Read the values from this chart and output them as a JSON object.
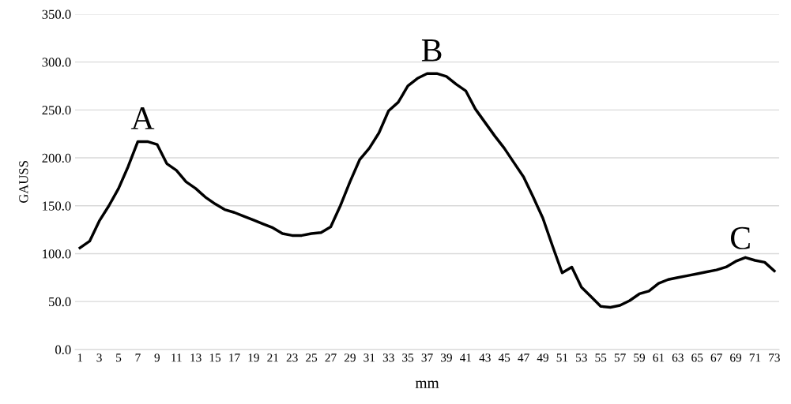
{
  "chart_data": {
    "type": "line",
    "xlabel": "mm",
    "ylabel": "GAUSS",
    "categories": [
      "1",
      null,
      "3",
      null,
      "5",
      null,
      "7",
      null,
      "9",
      null,
      "11",
      null,
      "13",
      null,
      "15",
      null,
      "17",
      null,
      "19",
      null,
      "21",
      null,
      "23",
      null,
      "25",
      null,
      "27",
      null,
      "29",
      null,
      "31",
      null,
      "33",
      null,
      "35",
      null,
      "37",
      null,
      "39",
      null,
      "41",
      null,
      "43",
      null,
      "45",
      null,
      "47",
      null,
      "49",
      null,
      "51",
      null,
      "53",
      null,
      "55",
      null,
      "57",
      null,
      "59",
      null,
      "61",
      null,
      "63",
      null,
      "65",
      null,
      "67",
      null,
      "69",
      null,
      "71",
      null,
      "73"
    ],
    "series": [
      {
        "color": "#000000",
        "values": [
          106,
          113,
          134,
          150,
          168,
          191,
          217,
          217,
          214,
          194,
          187,
          175,
          168,
          159,
          152,
          146,
          143,
          139,
          135,
          131,
          127,
          121,
          119,
          119,
          121,
          122,
          128,
          150,
          175,
          198,
          210,
          226,
          249,
          258,
          275,
          283,
          288,
          288,
          285,
          277,
          270,
          251,
          237,
          223,
          210,
          195,
          180,
          159,
          137,
          108,
          80,
          86,
          65,
          55,
          45,
          44,
          46,
          51,
          58,
          61,
          69,
          73,
          75,
          77,
          79,
          81,
          83,
          86,
          92,
          96,
          93,
          91,
          82
        ]
      }
    ],
    "ylim": [
      0,
      350
    ],
    "yticks": [
      {
        "value": 0,
        "label": "0.0"
      },
      {
        "value": 50,
        "label": "50.0"
      },
      {
        "value": 100,
        "label": "100.0"
      },
      {
        "value": 150,
        "label": "150.0"
      },
      {
        "value": 200,
        "label": "200.0"
      },
      {
        "value": 250,
        "label": "250.0"
      },
      {
        "value": 300,
        "label": "300.0"
      },
      {
        "value": 350,
        "label": "350.0"
      }
    ],
    "grid": "y",
    "legend": false,
    "marker": "none",
    "line_style": "solid",
    "annotations": [
      {
        "text": "A",
        "x": "7",
        "y": 217
      },
      {
        "text": "B",
        "x": "37",
        "y": 288
      },
      {
        "text": "C",
        "x": "69",
        "y": 92
      }
    ]
  }
}
